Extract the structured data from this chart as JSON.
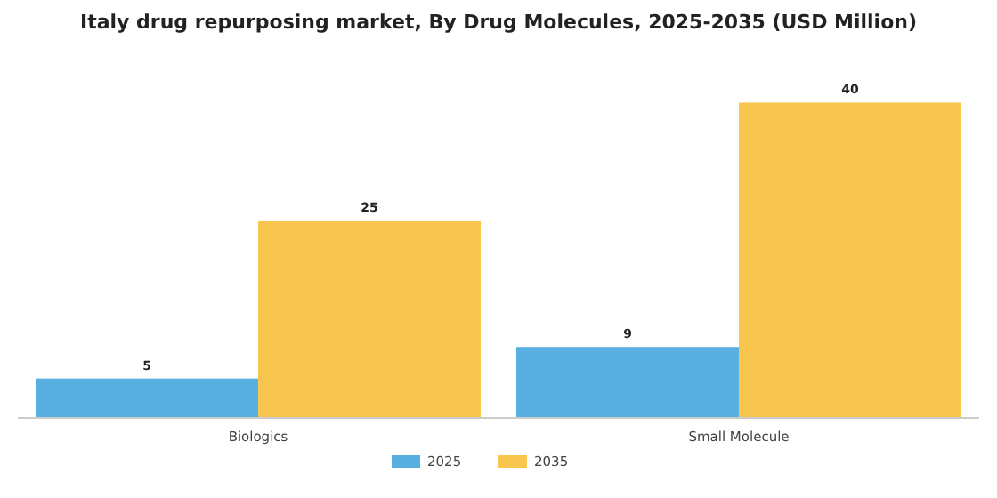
{
  "chart_data": {
    "type": "bar",
    "title": "Italy drug repurposing market, By Drug Molecules, 2025-2035 (USD Million)",
    "categories": [
      "Biologics",
      "Small Molecule"
    ],
    "series": [
      {
        "name": "2025",
        "color": "#5aafe1",
        "values": [
          5,
          9
        ]
      },
      {
        "name": "2035",
        "color": "#f8c54e",
        "values": [
          25,
          40
        ]
      }
    ],
    "data_labels": true,
    "legend": "bottom",
    "grid": false
  }
}
